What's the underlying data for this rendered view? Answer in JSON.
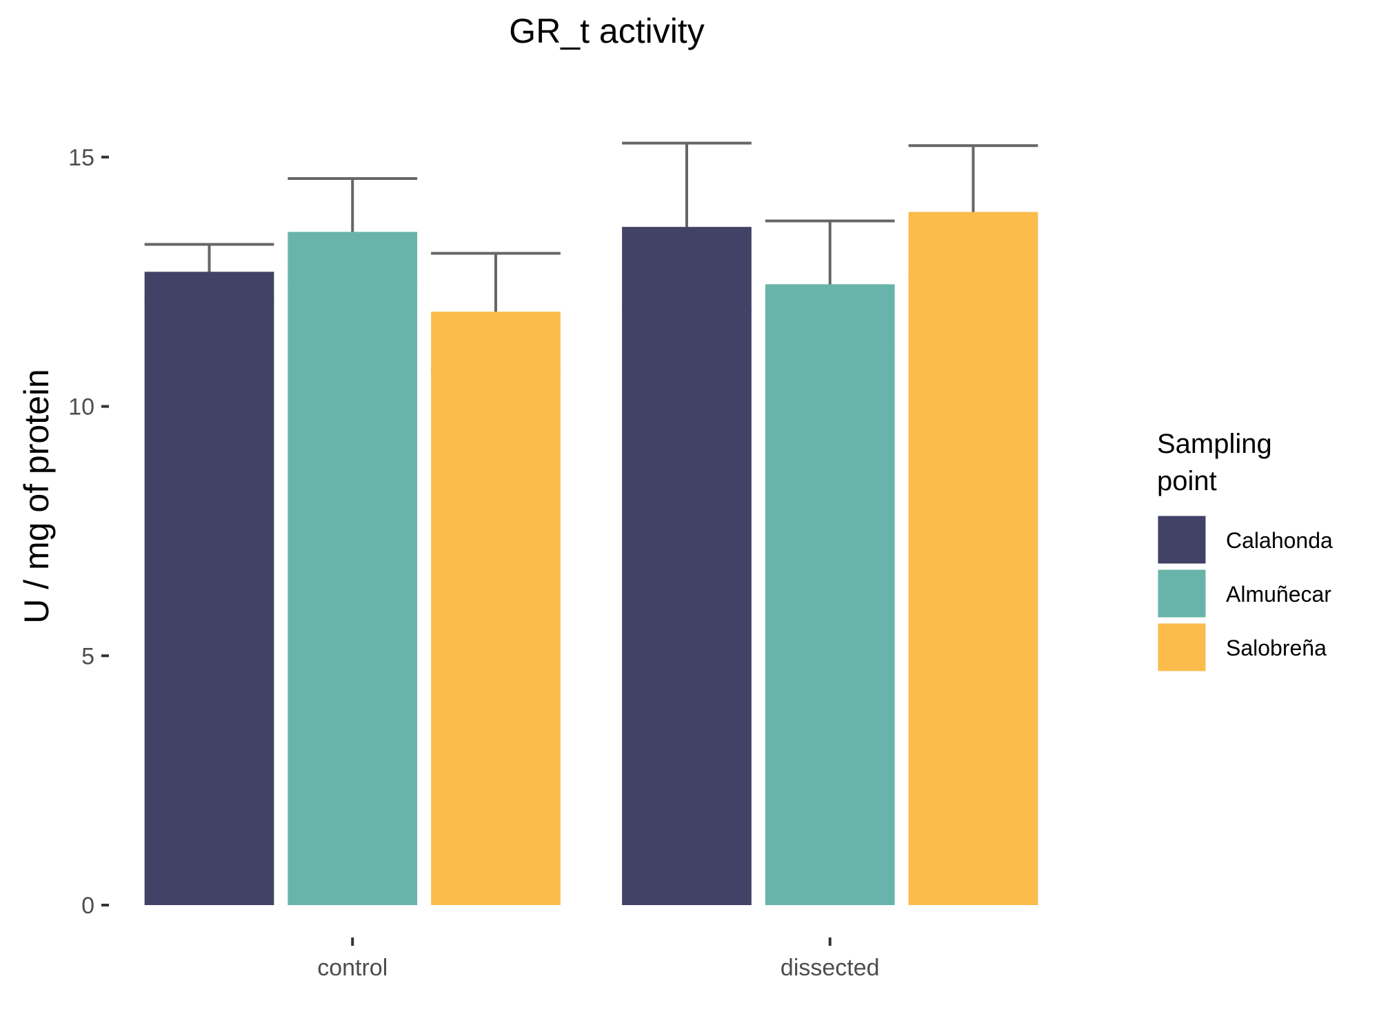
{
  "chart_data": {
    "type": "bar",
    "title": "GR_t activity",
    "xlabel": "",
    "ylabel": "U / mg  of protein",
    "categories": [
      "control",
      "dissected"
    ],
    "series": [
      {
        "name": "Calahonda",
        "color": "#414265",
        "values": [
          12.7,
          13.6
        ],
        "error": [
          0.55,
          1.68
        ]
      },
      {
        "name": "Almuñecar",
        "color": "#69b4aa",
        "values": [
          13.5,
          12.45
        ],
        "error": [
          1.07,
          1.27
        ]
      },
      {
        "name": "Salobreña",
        "color": "#fbbc4c",
        "values": [
          11.9,
          13.9
        ],
        "error": [
          1.17,
          1.33
        ]
      }
    ],
    "ylim": [
      0,
      15.8
    ],
    "yticks": [
      0,
      5,
      10,
      15
    ],
    "grid": false,
    "legend": {
      "title": "Sampling point",
      "title_lines": [
        "Sampling",
        "point"
      ],
      "placement": "right"
    }
  }
}
